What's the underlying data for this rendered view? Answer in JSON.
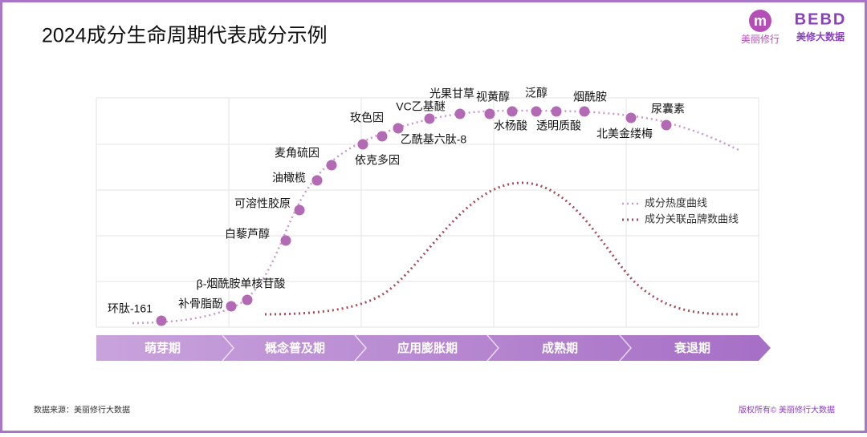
{
  "header": {
    "title": "2024成分生命周期代表成分示例"
  },
  "logos": {
    "left_caption": "美丽修行",
    "left_icon": "m",
    "right_mark": "BEBD",
    "right_caption": "美修大数据"
  },
  "ingredients": [
    "环肽-161",
    "补骨脂酚",
    "β-烟酰胺单核苷酸",
    "白藜芦醇",
    "可溶性胶原",
    "油橄榄",
    "麦角硫因",
    "依克多因",
    "玫色因",
    "乙酰基六肽-8",
    "VC乙基醚",
    "光果甘草",
    "视黄醇",
    "水杨酸",
    "泛醇",
    "透明质酸",
    "烟酰胺",
    "北美金缕梅",
    "尿囊素"
  ],
  "phases": [
    "萌芽期",
    "概念普及期",
    "应用膨胀期",
    "成熟期",
    "衰退期"
  ],
  "legend": [
    "成分热度曲线",
    "成分关联品牌数曲线"
  ],
  "footer": {
    "source": "数据来源：美丽修行大数据",
    "copyright": "版权所有© 美丽修行大数据"
  }
}
